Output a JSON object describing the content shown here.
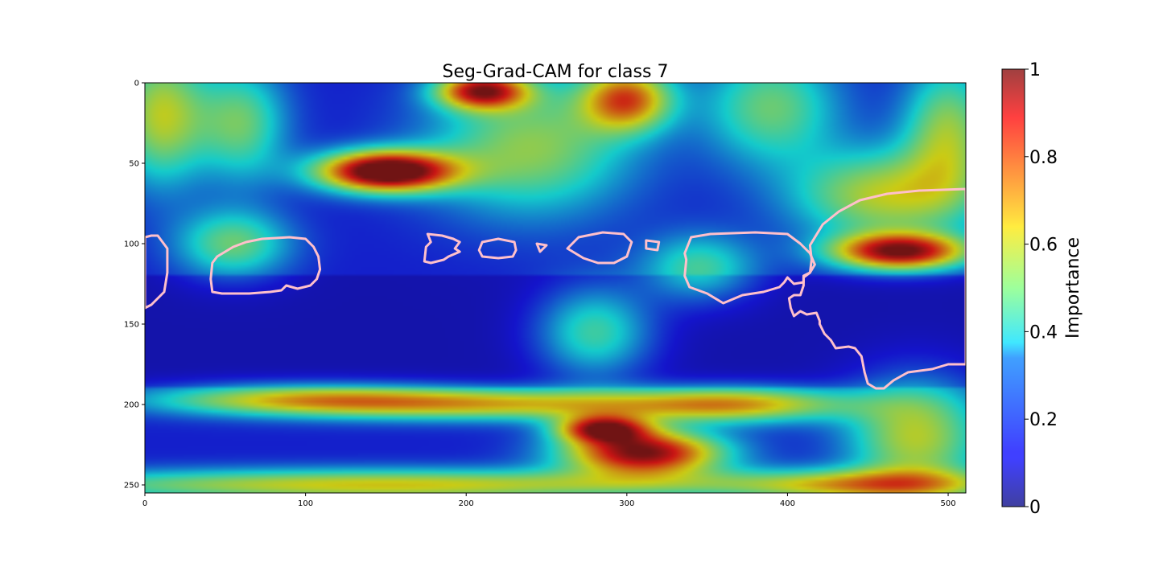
{
  "chart_data": {
    "type": "heatmap",
    "title": "Seg-Grad-CAM for class 7",
    "xlabel": "",
    "ylabel": "",
    "xlim": [
      0,
      511
    ],
    "ylim": [
      255,
      0
    ],
    "x_ticks": [
      0,
      100,
      200,
      300,
      400,
      500
    ],
    "y_ticks": [
      0,
      50,
      100,
      150,
      200,
      250
    ],
    "grid": false,
    "colormap": "jet",
    "colorbar": {
      "label": "Importance",
      "range": [
        0,
        1
      ],
      "ticks": [
        0,
        0.2,
        0.4,
        0.6,
        0.8,
        1
      ],
      "tick_labels": [
        "0",
        "0.2",
        "0.4",
        "0.6",
        "0.8",
        "1"
      ]
    },
    "hotspots": [
      {
        "x": 150,
        "y": 55,
        "value": 1.0,
        "sx": 30,
        "sy": 9
      },
      {
        "x": 310,
        "y": 230,
        "value": 0.85,
        "sx": 35,
        "sy": 10
      },
      {
        "x": 285,
        "y": 215,
        "value": 0.7,
        "sx": 20,
        "sy": 6
      },
      {
        "x": 470,
        "y": 105,
        "value": 0.8,
        "sx": 30,
        "sy": 8
      },
      {
        "x": 210,
        "y": 5,
        "value": 0.72,
        "sx": 20,
        "sy": 8
      },
      {
        "x": 300,
        "y": 10,
        "value": 0.6,
        "sx": 20,
        "sy": 14
      },
      {
        "x": 240,
        "y": 40,
        "value": 0.4,
        "sx": 45,
        "sy": 30
      },
      {
        "x": 230,
        "y": 200,
        "value": 0.45,
        "sx": 90,
        "sy": 7
      },
      {
        "x": 100,
        "y": 197,
        "value": 0.45,
        "sx": 70,
        "sy": 7
      },
      {
        "x": 370,
        "y": 200,
        "value": 0.45,
        "sx": 50,
        "sy": 8
      },
      {
        "x": 280,
        "y": 155,
        "value": 0.35,
        "sx": 25,
        "sy": 20
      },
      {
        "x": 480,
        "y": 220,
        "value": 0.45,
        "sx": 30,
        "sy": 25
      },
      {
        "x": 150,
        "y": 250,
        "value": 0.5,
        "sx": 160,
        "sy": 7
      },
      {
        "x": 450,
        "y": 250,
        "value": 0.45,
        "sx": 60,
        "sy": 7
      },
      {
        "x": 390,
        "y": 15,
        "value": 0.35,
        "sx": 30,
        "sy": 25
      },
      {
        "x": 460,
        "y": 70,
        "value": 0.45,
        "sx": 40,
        "sy": 20
      },
      {
        "x": 55,
        "y": 100,
        "value": 0.35,
        "sx": 25,
        "sy": 15
      },
      {
        "x": 60,
        "y": 25,
        "value": 0.35,
        "sx": 20,
        "sy": 25
      },
      {
        "x": 10,
        "y": 20,
        "value": 0.45,
        "sx": 20,
        "sy": 30
      },
      {
        "x": 500,
        "y": 30,
        "value": 0.4,
        "sx": 20,
        "sy": 30
      },
      {
        "x": 345,
        "y": 115,
        "value": 0.3,
        "sx": 25,
        "sy": 15
      }
    ],
    "contours": [
      {
        "name": "left-edge",
        "points": [
          [
            8,
            95
          ],
          [
            14,
            103
          ],
          [
            14,
            118
          ],
          [
            12,
            130
          ],
          [
            7,
            135
          ],
          [
            4,
            138
          ],
          [
            0,
            140
          ],
          [
            0,
            96
          ],
          [
            4,
            95
          ]
        ]
      },
      {
        "name": "car-left",
        "points": [
          [
            42,
            112
          ],
          [
            45,
            108
          ],
          [
            55,
            102
          ],
          [
            63,
            99
          ],
          [
            73,
            97
          ],
          [
            90,
            96
          ],
          [
            100,
            97
          ],
          [
            105,
            102
          ],
          [
            108,
            108
          ],
          [
            109,
            116
          ],
          [
            107,
            122
          ],
          [
            103,
            126
          ],
          [
            95,
            128
          ],
          [
            88,
            126
          ],
          [
            85,
            129
          ],
          [
            78,
            130
          ],
          [
            65,
            131
          ],
          [
            48,
            131
          ],
          [
            42,
            130
          ],
          [
            41,
            122
          ]
        ]
      },
      {
        "name": "blob-1",
        "points": [
          [
            176,
            94
          ],
          [
            185,
            95
          ],
          [
            192,
            97
          ],
          [
            196,
            99
          ],
          [
            193,
            103
          ],
          [
            196,
            105
          ],
          [
            189,
            108
          ],
          [
            186,
            110
          ],
          [
            178,
            112
          ],
          [
            174,
            111
          ],
          [
            175,
            102
          ],
          [
            178,
            99
          ]
        ]
      },
      {
        "name": "blob-2",
        "points": [
          [
            210,
            99
          ],
          [
            220,
            97
          ],
          [
            230,
            99
          ],
          [
            231,
            104
          ],
          [
            229,
            108
          ],
          [
            220,
            109
          ],
          [
            210,
            108
          ],
          [
            208,
            104
          ]
        ]
      },
      {
        "name": "blob-3",
        "points": [
          [
            244,
            100
          ],
          [
            250,
            101
          ],
          [
            246,
            105
          ]
        ]
      },
      {
        "name": "blob-4",
        "points": [
          [
            270,
            96
          ],
          [
            285,
            93
          ],
          [
            298,
            94
          ],
          [
            303,
            99
          ],
          [
            300,
            108
          ],
          [
            292,
            112
          ],
          [
            282,
            112
          ],
          [
            273,
            109
          ],
          [
            263,
            103
          ]
        ]
      },
      {
        "name": "blob-5",
        "points": [
          [
            312,
            98
          ],
          [
            320,
            99
          ],
          [
            319,
            104
          ],
          [
            312,
            103
          ]
        ]
      },
      {
        "name": "car-right-1",
        "points": [
          [
            340,
            96
          ],
          [
            352,
            94
          ],
          [
            380,
            93
          ],
          [
            400,
            94
          ],
          [
            408,
            100
          ],
          [
            414,
            106
          ],
          [
            417,
            113
          ],
          [
            414,
            118
          ],
          [
            410,
            120
          ],
          [
            410,
            124
          ],
          [
            404,
            125
          ],
          [
            400,
            121
          ],
          [
            398,
            124
          ],
          [
            395,
            127
          ],
          [
            385,
            130
          ],
          [
            372,
            132
          ],
          [
            360,
            137
          ],
          [
            350,
            131
          ],
          [
            339,
            127
          ],
          [
            336,
            120
          ],
          [
            337,
            110
          ],
          [
            336,
            106
          ]
        ]
      },
      {
        "name": "car-right-big",
        "points": [
          [
            414,
            101
          ],
          [
            422,
            88
          ],
          [
            432,
            80
          ],
          [
            445,
            73
          ],
          [
            462,
            69
          ],
          [
            482,
            67
          ],
          [
            511,
            66
          ],
          [
            511,
            175
          ],
          [
            500,
            175
          ],
          [
            490,
            178
          ],
          [
            475,
            180
          ],
          [
            466,
            185
          ],
          [
            460,
            190
          ],
          [
            455,
            190
          ],
          [
            450,
            187
          ],
          [
            448,
            180
          ],
          [
            446,
            170
          ],
          [
            442,
            165
          ],
          [
            438,
            164
          ],
          [
            430,
            165
          ],
          [
            427,
            160
          ],
          [
            423,
            156
          ],
          [
            420,
            150
          ],
          [
            420,
            148
          ],
          [
            418,
            143
          ],
          [
            412,
            144
          ],
          [
            408,
            142
          ],
          [
            404,
            145
          ],
          [
            402,
            140
          ],
          [
            401,
            134
          ],
          [
            404,
            132
          ],
          [
            408,
            132
          ],
          [
            410,
            126
          ],
          [
            410,
            121
          ],
          [
            414,
            118
          ],
          [
            415,
            110
          ]
        ]
      }
    ]
  }
}
